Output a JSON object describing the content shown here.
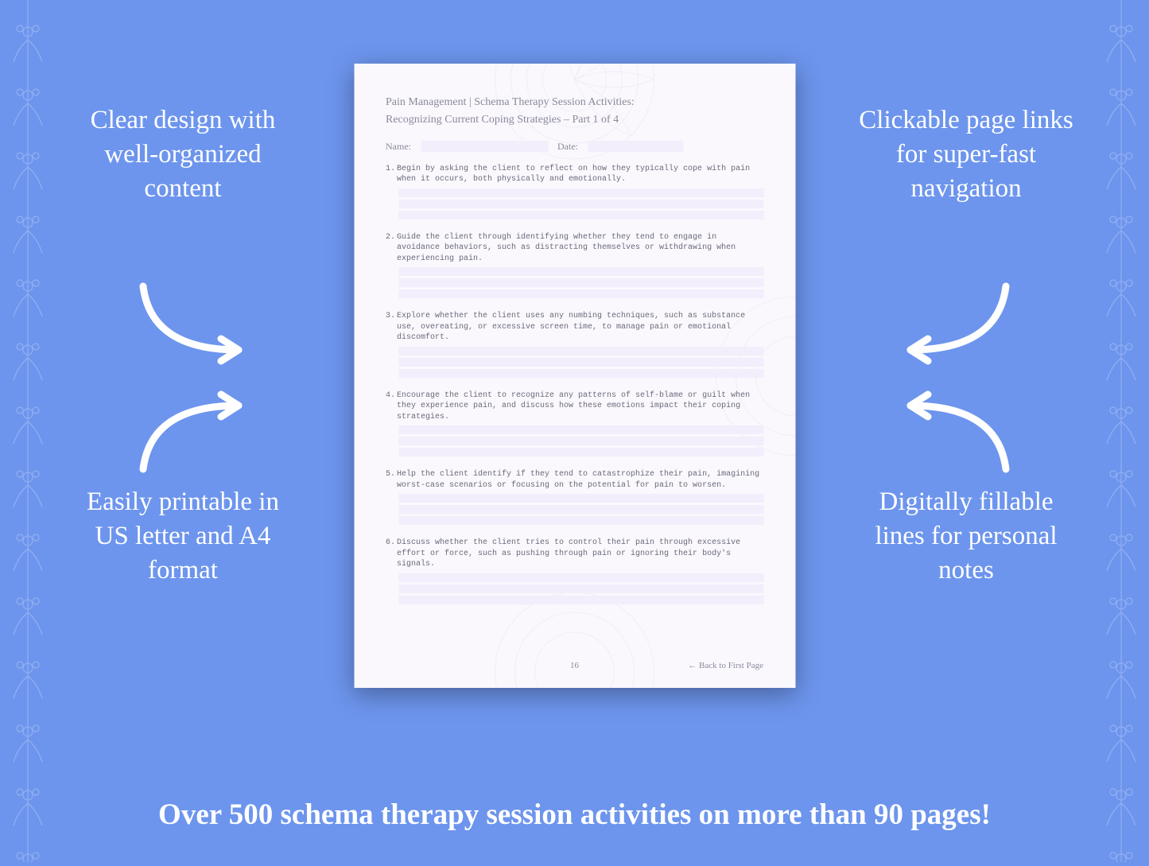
{
  "background_color": "#6d95ed",
  "callout_color": "#ffffff",
  "callout_fontsize": 33,
  "callouts": {
    "tl": "Clear design with well-organized content",
    "tr": "Clickable page links for super-fast navigation",
    "bl": "Easily printable in US letter and A4 format",
    "br": "Digitally fillable lines for personal notes"
  },
  "banner": "Over 500 schema therapy session activities on more than 90 pages!",
  "banner_fontsize": 37,
  "document": {
    "page_bg": "#faf8fd",
    "heading_line1": "Pain Management | Schema Therapy Session Activities:",
    "heading_line2": "Recognizing Current Coping Strategies  – Part 1 of 4",
    "name_label": "Name:",
    "date_label": "Date:",
    "fill_line_color": "#f2eefb",
    "text_color": "#8a8a9a",
    "mono_text_color": "#6a6a7a",
    "items": [
      {
        "n": "1.",
        "text": "Begin by asking the client to reflect on how they typically cope with pain when it occurs, both physically and emotionally."
      },
      {
        "n": "2.",
        "text": "Guide the client through identifying whether they tend to engage in avoidance behaviors, such as distracting themselves or withdrawing when experiencing pain."
      },
      {
        "n": "3.",
        "text": "Explore whether the client uses any numbing techniques, such as substance use, overeating, or excessive screen time, to manage pain or emotional discomfort."
      },
      {
        "n": "4.",
        "text": "Encourage the client to recognize any patterns of self-blame or guilt when they experience pain, and discuss how these emotions impact their coping strategies."
      },
      {
        "n": "5.",
        "text": "Help the client identify if they tend to catastrophize their pain, imagining worst-case scenarios or focusing on the potential for pain to worsen."
      },
      {
        "n": "6.",
        "text": "Discuss whether the client tries to control their pain through excessive effort or force, such as pushing through pain or ignoring their body's signals."
      }
    ],
    "page_number": "16",
    "back_link": "← Back to First Page"
  }
}
